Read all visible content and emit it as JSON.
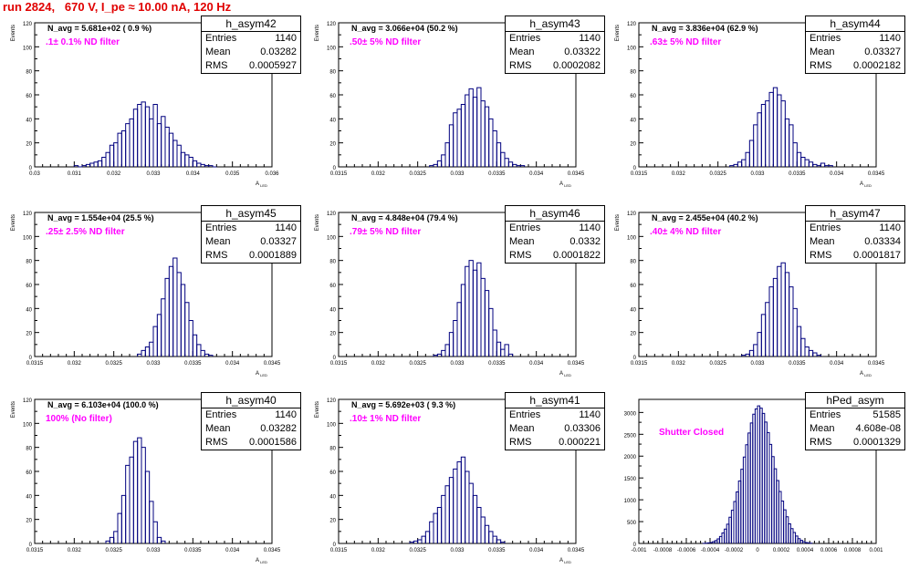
{
  "header": {
    "run_text": "run 2824,   670 V, I_pe ≈ 10.00 nA, 120 Hz"
  },
  "stat_labels": {
    "entries": "Entries",
    "mean": "Mean",
    "rms": "RMS"
  },
  "colors": {
    "histogram": "#00007f",
    "filter_text": "#ff00ff",
    "run_text": "#e00000"
  },
  "chart_data": [
    {
      "type": "bar",
      "name": "h_asym42",
      "ylabel": "Events",
      "xlabel": "A_LED",
      "xlim": [
        0.03,
        0.036
      ],
      "ylim": [
        0,
        120
      ],
      "xticks": [
        "0.03",
        "0.031",
        "0.032",
        "0.033",
        "0.034",
        "0.035",
        "0.036"
      ],
      "yticks": [
        "0",
        "20",
        "40",
        "60",
        "80",
        "100",
        "120"
      ],
      "annotation": "N_avg = 5.681e+02 ( 0.9 %)",
      "filter": ".1± 0.1% ND filter",
      "stats": {
        "entries": "1140",
        "mean": "0.03282",
        "rms": "0.0005927"
      },
      "bin_width": 0.0001,
      "x": [
        0.031,
        0.0311,
        0.0312,
        0.0313,
        0.0314,
        0.0315,
        0.0316,
        0.0317,
        0.0318,
        0.0319,
        0.032,
        0.0321,
        0.0322,
        0.0323,
        0.0324,
        0.0325,
        0.0326,
        0.0327,
        0.0328,
        0.0329,
        0.033,
        0.0331,
        0.0332,
        0.0333,
        0.0334,
        0.0335,
        0.0336,
        0.0337,
        0.0338,
        0.0339,
        0.034,
        0.0341,
        0.0342,
        0.0343,
        0.0344,
        0.0345
      ],
      "values": [
        1,
        0,
        1,
        2,
        3,
        4,
        5,
        8,
        12,
        18,
        20,
        28,
        30,
        36,
        40,
        48,
        52,
        54,
        50,
        40,
        52,
        36,
        42,
        33,
        28,
        22,
        18,
        12,
        10,
        8,
        5,
        3,
        2,
        1,
        1,
        0
      ]
    },
    {
      "type": "bar",
      "name": "h_asym43",
      "ylabel": "Events",
      "xlabel": "A_LED",
      "xlim": [
        0.0315,
        0.0345
      ],
      "ylim": [
        0,
        120
      ],
      "xticks": [
        "0.0315",
        "0.032",
        "0.0325",
        "0.033",
        "0.0335",
        "0.034",
        "0.0345"
      ],
      "yticks": [
        "0",
        "20",
        "40",
        "60",
        "80",
        "100",
        "120"
      ],
      "annotation": "N_avg = 3.066e+04 (50.2 %)",
      "filter": ".50± 5% ND filter",
      "stats": {
        "entries": "1140",
        "mean": "0.03322",
        "rms": "0.0002082"
      },
      "bin_width": 5e-05,
      "x": [
        0.03265,
        0.0327,
        0.03275,
        0.0328,
        0.03285,
        0.0329,
        0.03295,
        0.033,
        0.03305,
        0.0331,
        0.03315,
        0.0332,
        0.03325,
        0.0333,
        0.03335,
        0.0334,
        0.03345,
        0.0335,
        0.03355,
        0.0336,
        0.03365,
        0.0337,
        0.03375,
        0.0338
      ],
      "values": [
        1,
        2,
        5,
        10,
        20,
        35,
        45,
        48,
        52,
        60,
        65,
        58,
        66,
        55,
        50,
        40,
        30,
        20,
        12,
        7,
        4,
        2,
        1,
        1
      ]
    },
    {
      "type": "bar",
      "name": "h_asym44",
      "ylabel": "Events",
      "xlabel": "A_LED",
      "xlim": [
        0.0315,
        0.0345
      ],
      "ylim": [
        0,
        120
      ],
      "xticks": [
        "0.0315",
        "0.032",
        "0.0325",
        "0.033",
        "0.0335",
        "0.034",
        "0.0345"
      ],
      "yticks": [
        "0",
        "20",
        "40",
        "60",
        "80",
        "100",
        "120"
      ],
      "annotation": "N_avg = 3.836e+04 (62.9 %)",
      "filter": ".63± 5% ND filter",
      "stats": {
        "entries": "1140",
        "mean": "0.03327",
        "rms": "0.0002182"
      },
      "bin_width": 5e-05,
      "x": [
        0.03265,
        0.0327,
        0.03275,
        0.0328,
        0.03285,
        0.0329,
        0.03295,
        0.033,
        0.03305,
        0.0331,
        0.03315,
        0.0332,
        0.03325,
        0.0333,
        0.03335,
        0.0334,
        0.03345,
        0.0335,
        0.03355,
        0.0336,
        0.03365,
        0.0337,
        0.03375,
        0.0338,
        0.03385,
        0.0339
      ],
      "values": [
        1,
        2,
        4,
        6,
        12,
        22,
        35,
        45,
        52,
        55,
        62,
        66,
        60,
        55,
        40,
        35,
        20,
        12,
        8,
        6,
        4,
        2,
        1,
        3,
        1,
        1
      ]
    },
    {
      "type": "bar",
      "name": "h_asym45",
      "ylabel": "Events",
      "xlabel": "A_LED",
      "xlim": [
        0.0315,
        0.0345
      ],
      "ylim": [
        0,
        120
      ],
      "xticks": [
        "0.0315",
        "0.032",
        "0.0325",
        "0.033",
        "0.0335",
        "0.034",
        "0.0345"
      ],
      "yticks": [
        "0",
        "20",
        "40",
        "60",
        "80",
        "100",
        "120"
      ],
      "annotation": "N_avg = 1.554e+04 (25.5 %)",
      "filter": ".25± 2.5% ND filter",
      "stats": {
        "entries": "1140",
        "mean": "0.03327",
        "rms": "0.0001889"
      },
      "bin_width": 5e-05,
      "x": [
        0.0328,
        0.03285,
        0.0329,
        0.03295,
        0.033,
        0.03305,
        0.0331,
        0.03315,
        0.0332,
        0.03325,
        0.0333,
        0.03335,
        0.0334,
        0.03345,
        0.0335,
        0.03355,
        0.0336,
        0.03365,
        0.0337
      ],
      "values": [
        2,
        5,
        8,
        12,
        25,
        35,
        48,
        65,
        75,
        82,
        70,
        60,
        45,
        30,
        18,
        10,
        5,
        2,
        1
      ]
    },
    {
      "type": "bar",
      "name": "h_asym46",
      "ylabel": "Events",
      "xlabel": "A_LED",
      "xlim": [
        0.0315,
        0.0345
      ],
      "ylim": [
        0,
        120
      ],
      "xticks": [
        "0.0315",
        "0.032",
        "0.0325",
        "0.033",
        "0.0335",
        "0.034",
        "0.0345"
      ],
      "yticks": [
        "0",
        "20",
        "40",
        "60",
        "80",
        "100",
        "120"
      ],
      "annotation": "N_avg = 4.848e+04 (79.4 %)",
      "filter": ".79± 5% ND filter",
      "stats": {
        "entries": "1140",
        "mean": "0.0332",
        "rms": "0.0001822"
      },
      "bin_width": 5e-05,
      "x": [
        0.0327,
        0.03275,
        0.0328,
        0.03285,
        0.0329,
        0.03295,
        0.033,
        0.03305,
        0.0331,
        0.03315,
        0.0332,
        0.03325,
        0.0333,
        0.03335,
        0.0334,
        0.03345,
        0.0335,
        0.03355,
        0.0336,
        0.03365
      ],
      "values": [
        1,
        2,
        5,
        10,
        20,
        30,
        45,
        60,
        75,
        80,
        72,
        78,
        65,
        55,
        40,
        22,
        12,
        6,
        10,
        2
      ]
    },
    {
      "type": "bar",
      "name": "h_asym47",
      "ylabel": "Events",
      "xlabel": "A_LED",
      "xlim": [
        0.0315,
        0.0345
      ],
      "ylim": [
        0,
        120
      ],
      "xticks": [
        "0.0315",
        "0.032",
        "0.0325",
        "0.033",
        "0.0335",
        "0.034",
        "0.0345"
      ],
      "yticks": [
        "0",
        "20",
        "40",
        "60",
        "80",
        "100",
        "120"
      ],
      "annotation": "N_avg = 2.455e+04 (40.2 %)",
      "filter": ".40± 4% ND filter",
      "stats": {
        "entries": "1140",
        "mean": "0.03334",
        "rms": "0.0001817"
      },
      "bin_width": 5e-05,
      "x": [
        0.0328,
        0.03285,
        0.0329,
        0.03295,
        0.033,
        0.03305,
        0.0331,
        0.03315,
        0.0332,
        0.03325,
        0.0333,
        0.03335,
        0.0334,
        0.03345,
        0.0335,
        0.03355,
        0.0336,
        0.03365,
        0.0337,
        0.03375
      ],
      "values": [
        1,
        2,
        5,
        10,
        20,
        35,
        45,
        58,
        65,
        75,
        78,
        70,
        58,
        40,
        25,
        15,
        8,
        5,
        3,
        1
      ]
    },
    {
      "type": "bar",
      "name": "h_asym40",
      "ylabel": "Events",
      "xlabel": "A_LED",
      "xlim": [
        0.0315,
        0.0345
      ],
      "ylim": [
        0,
        120
      ],
      "xticks": [
        "0.0315",
        "0.032",
        "0.0325",
        "0.033",
        "0.0335",
        "0.034",
        "0.0345"
      ],
      "yticks": [
        "0",
        "20",
        "40",
        "60",
        "80",
        "100",
        "120"
      ],
      "annotation": "N_avg = 6.103e+04 (100.0 %)",
      "filter": "100% (No filter)",
      "stats": {
        "entries": "1140",
        "mean": "0.03282",
        "rms": "0.0001586"
      },
      "bin_width": 5e-05,
      "x": [
        0.0324,
        0.03245,
        0.0325,
        0.03255,
        0.0326,
        0.03265,
        0.0327,
        0.03275,
        0.0328,
        0.03285,
        0.0329,
        0.03295,
        0.033,
        0.03305,
        0.0331
      ],
      "values": [
        2,
        5,
        10,
        25,
        40,
        65,
        72,
        85,
        88,
        80,
        60,
        35,
        18,
        5,
        2
      ]
    },
    {
      "type": "bar",
      "name": "h_asym41",
      "ylabel": "Events",
      "xlabel": "A_LED",
      "xlim": [
        0.0315,
        0.0345
      ],
      "ylim": [
        0,
        120
      ],
      "xticks": [
        "0.0315",
        "0.032",
        "0.0325",
        "0.033",
        "0.0335",
        "0.034",
        "0.0345"
      ],
      "yticks": [
        "0",
        "20",
        "40",
        "60",
        "80",
        "100",
        "120"
      ],
      "annotation": "N_avg = 5.692e+03 ( 9.3 %)",
      "filter": ".10± 1% ND filter",
      "stats": {
        "entries": "1140",
        "mean": "0.03306",
        "rms": "0.000221"
      },
      "bin_width": 5e-05,
      "x": [
        0.0324,
        0.03245,
        0.0325,
        0.03255,
        0.0326,
        0.03265,
        0.0327,
        0.03275,
        0.0328,
        0.03285,
        0.0329,
        0.03295,
        0.033,
        0.03305,
        0.0331,
        0.03315,
        0.0332,
        0.03325,
        0.0333,
        0.03335,
        0.0334,
        0.03345,
        0.0335,
        0.03355
      ],
      "values": [
        1,
        2,
        3,
        6,
        10,
        18,
        25,
        30,
        40,
        48,
        55,
        62,
        68,
        72,
        60,
        50,
        40,
        30,
        22,
        15,
        10,
        6,
        3,
        1
      ]
    },
    {
      "type": "bar",
      "name": "hPed_asym",
      "ylabel": "",
      "xlabel": "",
      "xlim": [
        -0.001,
        0.001
      ],
      "ylim": [
        0,
        3300
      ],
      "xticks": [
        "-0.001",
        "-0.0008",
        "-0.0006",
        "-0.0004",
        "-0.0002",
        "0",
        "0.0002",
        "0.0004",
        "0.0006",
        "0.0008",
        "0.001"
      ],
      "yticks": [
        "0",
        "500",
        "1000",
        "1500",
        "2000",
        "2500",
        "3000"
      ],
      "annotation": "",
      "filter": "Shutter Closed",
      "stats": {
        "entries": "51585",
        "mean": "4.608e-08",
        "rms": "0.0001329"
      },
      "bin_width": 2e-05,
      "x": [
        -0.00046,
        -0.00044,
        -0.00042,
        -0.0004,
        -0.00038,
        -0.00036,
        -0.00034,
        -0.00032,
        -0.0003,
        -0.00028,
        -0.00026,
        -0.00024,
        -0.00022,
        -0.0002,
        -0.00018,
        -0.00016,
        -0.00014,
        -0.00012,
        -0.0001,
        -8e-05,
        -6e-05,
        -4e-05,
        -2e-05,
        0,
        2e-05,
        4e-05,
        6e-05,
        8e-05,
        0.0001,
        0.00012,
        0.00014,
        0.00016,
        0.00018,
        0.0002,
        0.00022,
        0.00024,
        0.00026,
        0.00028,
        0.0003,
        0.00032,
        0.00034,
        0.00036,
        0.00038,
        0.0004,
        0.00042,
        0.00044
      ],
      "values": [
        3,
        6,
        12,
        22,
        40,
        65,
        105,
        160,
        240,
        330,
        440,
        600,
        760,
        960,
        1180,
        1430,
        1700,
        1980,
        2260,
        2530,
        2760,
        2960,
        3080,
        3150,
        3100,
        2980,
        2780,
        2540,
        2270,
        1990,
        1710,
        1440,
        1190,
        970,
        770,
        610,
        450,
        340,
        250,
        170,
        110,
        70,
        40,
        22,
        12,
        5
      ]
    }
  ]
}
